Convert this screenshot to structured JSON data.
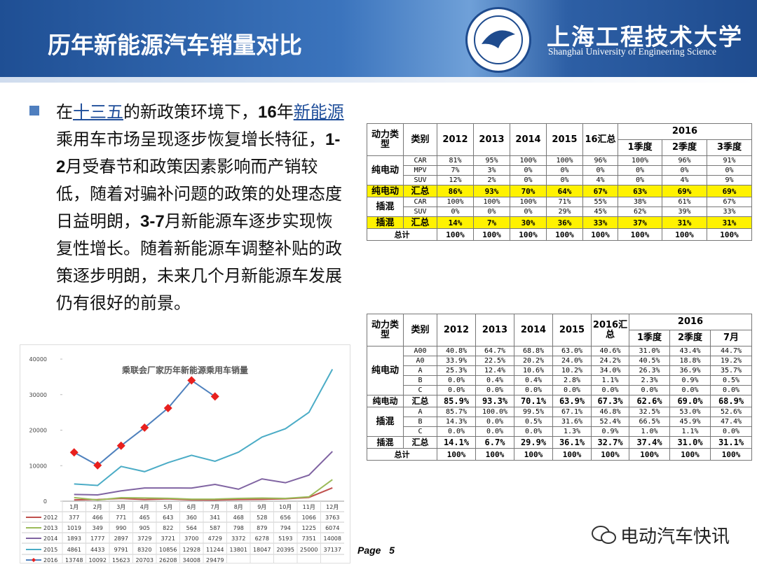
{
  "header": {
    "title": "历年新能源汽车销量对比",
    "school_cn": "上海工程技术大学",
    "school_en": "Shanghai University of Engineering Science"
  },
  "bullet": {
    "parts": [
      "在",
      "十三五",
      "的新政策环境下，",
      "16",
      "年",
      "新能源",
      "乘用车市场呈现逐步恢复增长特征，",
      "1-2",
      "月受春节和政策因素影响而产销较低，随着对骗补问题的政策的处理态度日益明朗，",
      "3-7",
      "月新能源车逐步实现恢复性增长。随着新能源车调整补贴的政策逐步明朗，未来几个月新能源车发展仍有很好的前景。"
    ]
  },
  "table1": {
    "columns": [
      "动力类型",
      "类别",
      "2012",
      "2013",
      "2014",
      "2015",
      "16汇总",
      "2016"
    ],
    "subcolumns": [
      "1季度",
      "2季度",
      "3季度"
    ],
    "groups": [
      {
        "type": "纯电动",
        "rows": [
          {
            "category": "CAR",
            "cells": [
              "81%",
              "95%",
              "100%",
              "100%",
              "96%",
              "100%",
              "96%",
              "91%"
            ]
          },
          {
            "category": "MPV",
            "cells": [
              "7%",
              "3%",
              "0%",
              "0%",
              "0%",
              "0%",
              "0%",
              "0%"
            ]
          },
          {
            "category": "SUV",
            "cells": [
              "12%",
              "2%",
              "0%",
              "0%",
              "4%",
              "0%",
              "4%",
              "9%"
            ]
          }
        ]
      },
      {
        "type": "纯电动",
        "highlight": true,
        "rows": [
          {
            "category": "汇总",
            "cells": [
              "86%",
              "93%",
              "70%",
              "64%",
              "67%",
              "63%",
              "69%",
              "69%"
            ]
          }
        ]
      },
      {
        "type": "插混",
        "rows": [
          {
            "category": "CAR",
            "cells": [
              "100%",
              "100%",
              "100%",
              "71%",
              "55%",
              "38%",
              "61%",
              "67%"
            ]
          },
          {
            "category": "SUV",
            "cells": [
              "0%",
              "0%",
              "0%",
              "29%",
              "45%",
              "62%",
              "39%",
              "33%"
            ]
          }
        ]
      },
      {
        "type": "插混",
        "highlight": true,
        "rows": [
          {
            "category": "汇总",
            "cells": [
              "14%",
              "7%",
              "30%",
              "36%",
              "33%",
              "37%",
              "31%",
              "31%"
            ]
          }
        ]
      },
      {
        "type": "总计",
        "total": true,
        "rows": [
          {
            "cells": [
              "100%",
              "100%",
              "100%",
              "100%",
              "100%",
              "100%",
              "100%",
              "100%"
            ]
          }
        ]
      }
    ]
  },
  "table2": {
    "columns": [
      "动力类型",
      "类别",
      "2012",
      "2013",
      "2014",
      "2015",
      "2016汇总",
      "2016"
    ],
    "subcolumns": [
      "1季度",
      "2季度",
      "7月"
    ],
    "groups": [
      {
        "type": "纯电动",
        "rows": [
          {
            "category": "A00",
            "cells": [
              "40.8%",
              "64.7%",
              "68.8%",
              "63.0%",
              "40.6%",
              "31.0%",
              "43.4%",
              "44.7%"
            ]
          },
          {
            "category": "A0",
            "cells": [
              "33.9%",
              "22.5%",
              "20.2%",
              "24.0%",
              "24.2%",
              "40.5%",
              "18.8%",
              "19.2%"
            ]
          },
          {
            "category": "A",
            "cells": [
              "25.3%",
              "12.4%",
              "10.6%",
              "10.2%",
              "34.0%",
              "26.3%",
              "36.9%",
              "35.7%"
            ]
          },
          {
            "category": "B",
            "cells": [
              "0.0%",
              "0.4%",
              "0.4%",
              "2.8%",
              "1.1%",
              "2.3%",
              "0.9%",
              "0.5%"
            ]
          },
          {
            "category": "C",
            "cells": [
              "0.0%",
              "0.0%",
              "0.0%",
              "0.0%",
              "0.0%",
              "0.0%",
              "0.0%",
              "0.0%"
            ]
          }
        ]
      },
      {
        "type": "纯电动",
        "bold": true,
        "rows": [
          {
            "category": "汇总",
            "cells": [
              "85.9%",
              "93.3%",
              "70.1%",
              "63.9%",
              "67.3%",
              "62.6%",
              "69.0%",
              "68.9%"
            ]
          }
        ]
      },
      {
        "type": "插混",
        "rows": [
          {
            "category": "A",
            "cells": [
              "85.7%",
              "100.0%",
              "99.5%",
              "67.1%",
              "46.8%",
              "32.5%",
              "53.0%",
              "52.6%"
            ]
          },
          {
            "category": "B",
            "cells": [
              "14.3%",
              "0.0%",
              "0.5%",
              "31.6%",
              "52.4%",
              "66.5%",
              "45.9%",
              "47.4%"
            ]
          },
          {
            "category": "C",
            "cells": [
              "0.0%",
              "0.0%",
              "0.0%",
              "1.3%",
              "0.9%",
              "1.0%",
              "1.1%",
              "0.0%"
            ]
          }
        ]
      },
      {
        "type": "插混",
        "bold": true,
        "rows": [
          {
            "category": "汇总",
            "cells": [
              "14.1%",
              "6.7%",
              "29.9%",
              "36.1%",
              "32.7%",
              "37.4%",
              "31.0%",
              "31.1%"
            ]
          }
        ]
      },
      {
        "type": "总计",
        "total": true,
        "rows": [
          {
            "cells": [
              "100%",
              "100%",
              "100%",
              "100%",
              "100%",
              "100%",
              "100%",
              "100%"
            ]
          }
        ]
      }
    ]
  },
  "chart_data": {
    "type": "line",
    "title": "乘联会厂家历年新能源乘用车销量",
    "categories": [
      "1月",
      "2月",
      "3月",
      "4月",
      "5月",
      "6月",
      "7月",
      "8月",
      "9月",
      "10月",
      "11月",
      "12月"
    ],
    "ylim": [
      0,
      40000
    ],
    "yticks": [
      0,
      10000,
      20000,
      30000,
      40000
    ],
    "grid": false,
    "series": [
      {
        "name": "2012",
        "color": "#c0504d",
        "values": [
          377,
          466,
          771,
          465,
          643,
          360,
          341,
          468,
          528,
          656,
          1066,
          3763
        ]
      },
      {
        "name": "2013",
        "color": "#9bbb59",
        "values": [
          1019,
          349,
          990,
          905,
          822,
          564,
          587,
          798,
          879,
          794,
          1225,
          6074
        ]
      },
      {
        "name": "2014",
        "color": "#8064a2",
        "values": [
          1893,
          1777,
          2897,
          3729,
          3721,
          3700,
          4729,
          3372,
          6278,
          5193,
          7351,
          14008
        ]
      },
      {
        "name": "2015",
        "color": "#4bacc6",
        "values": [
          4861,
          4433,
          9791,
          8320,
          10856,
          12928,
          11244,
          13801,
          18047,
          20395,
          25000,
          37137
        ]
      },
      {
        "name": "2016",
        "color": "#4f81bd",
        "marker": "diamond",
        "marker_color": "#e8201e",
        "values": [
          13748,
          10092,
          15623,
          20703,
          26208,
          34008,
          29479,
          null,
          null,
          null,
          null,
          null
        ]
      }
    ]
  },
  "footer": {
    "page_label": "Page",
    "page_number": "5",
    "watermark": "电动汽车快讯"
  }
}
